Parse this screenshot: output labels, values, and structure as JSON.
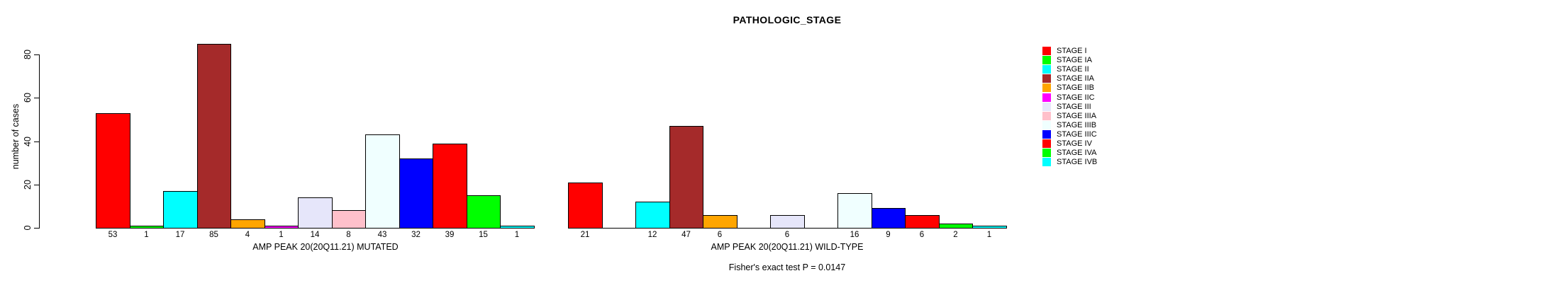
{
  "title": "PATHOLOGIC_STAGE",
  "chart_data": {
    "type": "bar",
    "title": "PATHOLOGIC_STAGE",
    "ylabel": "number of cases",
    "ylim": [
      0,
      85
    ],
    "yticks": [
      0,
      20,
      40,
      60,
      80
    ],
    "grid": false,
    "legend_position": "right-outside",
    "categories": [
      "STAGE I",
      "STAGE IA",
      "STAGE II",
      "STAGE IIA",
      "STAGE IIB",
      "STAGE IIC",
      "STAGE III",
      "STAGE IIIA",
      "STAGE IIIB",
      "STAGE IIIC",
      "STAGE IV",
      "STAGE IVA",
      "STAGE IVB"
    ],
    "colors": [
      "#FF0000",
      "#00FF00",
      "#00FFFF",
      "#A52A2A",
      "#FFA500",
      "#FF00FF",
      "#E6E6FA",
      "#FFC0CB",
      "#F0FFFF",
      "#0000FF",
      "#FF0000",
      "#00FF00",
      "#00FFFF"
    ],
    "groups": [
      {
        "label": "AMP PEAK 20(20Q11.21) MUTATED",
        "values": [
          53,
          1,
          17,
          85,
          4,
          1,
          14,
          8,
          43,
          32,
          39,
          15,
          1
        ]
      },
      {
        "label": "AMP PEAK 20(20Q11.21) WILD-TYPE",
        "values": [
          21,
          0,
          12,
          47,
          6,
          0,
          6,
          0,
          16,
          9,
          6,
          2,
          1
        ]
      }
    ],
    "annotation": "Fisher's exact test P = 0.0147"
  }
}
